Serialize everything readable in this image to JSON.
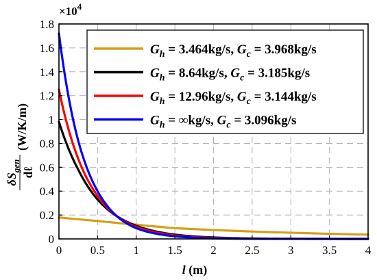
{
  "chart_data": {
    "type": "line",
    "xlabel_var": "l",
    "xlabel_unit": " (m)",
    "ylabel_fraction_num": "δS",
    "ylabel_fraction_num_sub": "gen",
    "ylabel_fraction_den": "dℓ",
    "ylabel_unit": "(W/K/m)",
    "y_multiplier": "×10",
    "y_multiplier_exp": "4",
    "xlim": [
      0,
      4
    ],
    "ylim": [
      0,
      1.8
    ],
    "x_ticks": [
      "0",
      "0.5",
      "1",
      "1.5",
      "2",
      "2.5",
      "3",
      "3.5",
      "4"
    ],
    "y_ticks": [
      "0",
      "0.2",
      "0.4",
      "0.6",
      "0.8",
      "1",
      "1.2",
      "1.4",
      "1.6",
      "1.8"
    ],
    "grid": true,
    "legend_position": "top-right",
    "series": [
      {
        "name": "G_h = 3.464kg/s, G_c = 3.968kg/s",
        "legend_parts": [
          "G",
          "h",
          " = 3.464kg/s, ",
          "G",
          "c",
          " = 3.968kg/s"
        ],
        "color": "#D4A017",
        "x": [
          0,
          0.5,
          1,
          1.5,
          2,
          2.5,
          3,
          3.5,
          4
        ],
        "y": [
          0.18,
          0.15,
          0.12,
          0.09,
          0.075,
          0.062,
          0.052,
          0.043,
          0.036
        ]
      },
      {
        "name": "G_h = 8.64kg/s, G_c = 3.185kg/s",
        "legend_parts": [
          "G",
          "h",
          " = 8.64kg/s, ",
          "G",
          "c",
          " = 3.185kg/s"
        ],
        "color": "#000000",
        "x": [
          0,
          0.25,
          0.5,
          0.75,
          1,
          1.25,
          1.5,
          2,
          2.5,
          3,
          3.5,
          4
        ],
        "y": [
          0.98,
          0.58,
          0.33,
          0.19,
          0.11,
          0.063,
          0.036,
          0.012,
          0.004,
          0.0013,
          0.0004,
          0.0001
        ]
      },
      {
        "name": "G_h = 12.96kg/s, G_c = 3.144kg/s",
        "legend_parts": [
          "G",
          "h",
          " = 12.96kg/s, ",
          "G",
          "c",
          " = 3.144kg/s"
        ],
        "color": "#FF0000",
        "x": [
          0,
          0.25,
          0.5,
          0.75,
          1,
          1.25,
          1.5,
          2,
          2.5,
          3,
          3.5,
          4
        ],
        "y": [
          1.25,
          0.67,
          0.36,
          0.19,
          0.1,
          0.055,
          0.029,
          0.008,
          0.0024,
          0.0007,
          0.0002,
          0.0001
        ]
      },
      {
        "name": "G_h = ∞kg/s, G_c = 3.096kg/s",
        "legend_parts": [
          "G",
          "h",
          " = ∞kg/s, ",
          "G",
          "c",
          " = 3.096kg/s"
        ],
        "color": "#0000FF",
        "x": [
          0,
          0.25,
          0.5,
          0.75,
          1,
          1.25,
          1.5,
          2,
          2.5,
          3,
          3.5,
          4
        ],
        "y": [
          1.72,
          0.82,
          0.4,
          0.19,
          0.09,
          0.045,
          0.022,
          0.005,
          0.0012,
          0.0003,
          0.0001,
          0.0
        ]
      }
    ]
  }
}
